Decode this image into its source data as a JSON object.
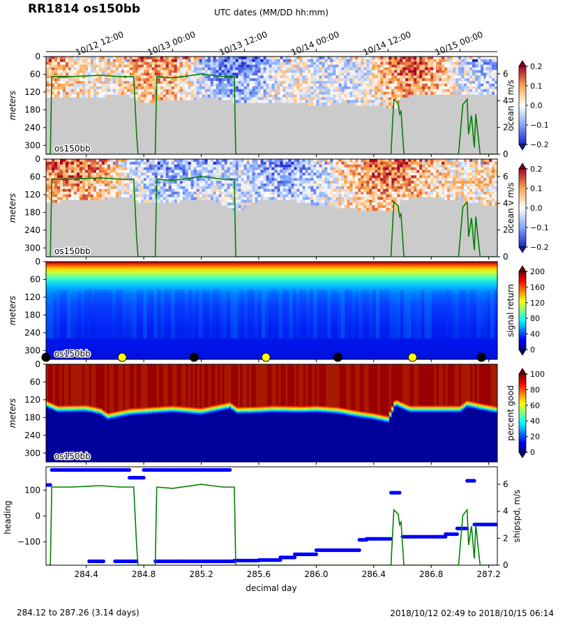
{
  "chart_data": {
    "type": "heatmap",
    "title": "RR1814 os150bb",
    "top_axis": {
      "label": "UTC dates (MM/DD hh:mm)",
      "ticks": [
        {
          "decday": 284.5,
          "label": "10/12 12:00"
        },
        {
          "decday": 285.0,
          "label": "10/13 00:00"
        },
        {
          "decday": 285.5,
          "label": "10/13 12:00"
        },
        {
          "decday": 286.0,
          "label": "10/14 00:00"
        },
        {
          "decday": 286.5,
          "label": "10/14 12:00"
        },
        {
          "decday": 287.0,
          "label": "10/15 00:00"
        }
      ]
    },
    "x_axis": {
      "label": "decimal day",
      "range": [
        284.12,
        287.26
      ],
      "ticks": [
        284.4,
        284.8,
        285.2,
        285.6,
        286.0,
        286.4,
        286.8,
        287.2
      ],
      "tick_labels": [
        "284.4",
        "284.8",
        "285.2",
        "285.6",
        "286.0",
        "286.4",
        "286.8",
        "287.2"
      ]
    },
    "depth_axis": {
      "label": "meters",
      "range": [
        330,
        0
      ],
      "ticks": [
        0,
        60,
        120,
        180,
        240,
        300
      ],
      "tick_labels": [
        "0",
        "60",
        "120",
        "180",
        "240",
        "300"
      ]
    },
    "instrument_label": "os150bb",
    "ship_speed_series": [
      [
        284.12,
        0
      ],
      [
        284.15,
        0
      ],
      [
        284.16,
        5.8
      ],
      [
        284.3,
        5.8
      ],
      [
        284.5,
        5.9
      ],
      [
        284.63,
        5.8
      ],
      [
        284.73,
        5.8
      ],
      [
        284.75,
        1.5
      ],
      [
        284.76,
        0
      ],
      [
        284.88,
        0
      ],
      [
        284.89,
        5.8
      ],
      [
        285.0,
        5.7
      ],
      [
        285.2,
        6.0
      ],
      [
        285.35,
        5.8
      ],
      [
        285.43,
        5.8
      ],
      [
        285.44,
        0
      ],
      [
        286.52,
        0
      ],
      [
        286.54,
        4.1
      ],
      [
        286.57,
        3.8
      ],
      [
        286.58,
        3.0
      ],
      [
        286.59,
        3.2
      ],
      [
        286.61,
        0
      ],
      [
        286.99,
        0
      ],
      [
        287.02,
        3.7
      ],
      [
        287.05,
        4.1
      ],
      [
        287.06,
        1.5
      ],
      [
        287.08,
        2.9
      ],
      [
        287.1,
        0.5
      ],
      [
        287.11,
        3.0
      ],
      [
        287.14,
        0
      ],
      [
        287.26,
        0
      ]
    ],
    "panels": [
      {
        "colorbar_label": "ocean u m/s",
        "colorbar_ticks": [
          "0.2",
          "0.1",
          "0.0",
          "−0.1",
          "−0.2"
        ],
        "colorbar_range": [
          -0.2,
          0.2
        ],
        "colormap": "RdBu_r",
        "right_axis": {
          "ticks": [
            "0",
            "2",
            "4",
            "6"
          ],
          "range": [
            0,
            7.3
          ]
        },
        "bottom_depth_m": [
          [
            284.12,
            135
          ],
          [
            284.4,
            130
          ],
          [
            284.7,
            127
          ],
          [
            284.8,
            150
          ],
          [
            285.0,
            142
          ],
          [
            285.3,
            135
          ],
          [
            285.45,
            150
          ],
          [
            285.6,
            155
          ],
          [
            285.8,
            150
          ],
          [
            286.0,
            160
          ],
          [
            286.2,
            152
          ],
          [
            286.4,
            162
          ],
          [
            286.55,
            168
          ],
          [
            286.6,
            130
          ],
          [
            286.8,
            122
          ],
          [
            287.0,
            128
          ],
          [
            287.26,
            125
          ]
        ]
      },
      {
        "colorbar_label": "ocean v m/s",
        "colorbar_ticks": [
          "0.2",
          "0.1",
          "0.0",
          "−0.1",
          "−0.2"
        ],
        "colorbar_range": [
          -0.2,
          0.2
        ],
        "colormap": "RdBu_r",
        "right_axis": {
          "ticks": [
            "0",
            "2",
            "4",
            "6"
          ],
          "range": [
            0,
            7.3
          ]
        },
        "bottom_depth_m": [
          [
            284.12,
            140
          ],
          [
            284.4,
            132
          ],
          [
            284.7,
            125
          ],
          [
            284.8,
            145
          ],
          [
            285.0,
            138
          ],
          [
            285.3,
            135
          ],
          [
            285.45,
            175
          ],
          [
            285.6,
            135
          ],
          [
            285.8,
            132
          ],
          [
            286.0,
            150
          ],
          [
            286.2,
            160
          ],
          [
            286.4,
            170
          ],
          [
            286.55,
            172
          ],
          [
            286.6,
            130
          ],
          [
            286.8,
            122
          ],
          [
            287.0,
            135
          ],
          [
            287.26,
            155
          ]
        ]
      },
      {
        "colorbar_label": "signal return",
        "colorbar_ticks": [
          "200",
          "160",
          "120",
          "80",
          "40",
          "0"
        ],
        "colorbar_range": [
          0,
          210
        ],
        "colormap": "jet",
        "markers": [
          {
            "decday": 284.12,
            "color": "black"
          },
          {
            "decday": 284.65,
            "color": "yellow"
          },
          {
            "decday": 285.15,
            "color": "black"
          },
          {
            "decday": 285.65,
            "color": "yellow"
          },
          {
            "decday": 286.15,
            "color": "black"
          },
          {
            "decday": 286.67,
            "color": "yellow"
          },
          {
            "decday": 287.15,
            "color": "black"
          }
        ]
      },
      {
        "colorbar_label": "percent good",
        "colorbar_ticks": [
          "100",
          "80",
          "60",
          "40",
          "20",
          "0"
        ],
        "colorbar_range": [
          0,
          100
        ],
        "colormap": "jet",
        "good_depth_m": [
          [
            284.12,
            122
          ],
          [
            284.2,
            140
          ],
          [
            284.4,
            138
          ],
          [
            284.5,
            148
          ],
          [
            284.55,
            165
          ],
          [
            284.7,
            150
          ],
          [
            285.0,
            140
          ],
          [
            285.2,
            148
          ],
          [
            285.4,
            128
          ],
          [
            285.45,
            145
          ],
          [
            285.6,
            143
          ],
          [
            285.7,
            140
          ],
          [
            285.9,
            142
          ],
          [
            286.0,
            140
          ],
          [
            286.15,
            145
          ],
          [
            286.3,
            158
          ],
          [
            286.4,
            165
          ],
          [
            286.5,
            175
          ],
          [
            286.55,
            118
          ],
          [
            286.65,
            140
          ],
          [
            286.85,
            140
          ],
          [
            287.0,
            140
          ],
          [
            287.05,
            122
          ],
          [
            287.15,
            133
          ],
          [
            287.26,
            143
          ]
        ]
      },
      {
        "left_label": "heading",
        "left_color": "#0000ff",
        "left_ticks": [
          100,
          0,
          -100
        ],
        "left_tick_labels": [
          "100",
          "0",
          "−100"
        ],
        "left_range": [
          -190,
          190
        ],
        "right_label": "shipspd, m/s",
        "right_color": "#008000",
        "right_ticks": [
          "0",
          "2",
          "4",
          "6"
        ],
        "right_range": [
          0,
          7.3
        ],
        "heading_segments": [
          [
            284.12,
            284.15,
            120
          ],
          [
            284.16,
            284.5,
            178
          ],
          [
            284.5,
            284.7,
            178
          ],
          [
            284.7,
            284.8,
            148
          ],
          [
            284.8,
            284.88,
            178
          ],
          [
            284.88,
            285.4,
            178
          ],
          [
            284.42,
            284.52,
            -175
          ],
          [
            284.6,
            284.75,
            -175
          ],
          [
            284.88,
            285.43,
            -175
          ],
          [
            285.43,
            285.6,
            -172
          ],
          [
            285.6,
            285.75,
            -170
          ],
          [
            285.75,
            285.85,
            -160
          ],
          [
            285.85,
            286.0,
            -148
          ],
          [
            286.0,
            286.3,
            -132
          ],
          [
            286.3,
            286.35,
            -92
          ],
          [
            286.35,
            286.52,
            -88
          ],
          [
            286.52,
            286.58,
            90
          ],
          [
            286.6,
            286.9,
            -80
          ],
          [
            286.9,
            286.98,
            -70
          ],
          [
            286.98,
            287.05,
            -48
          ],
          [
            287.05,
            287.1,
            136
          ],
          [
            287.1,
            287.26,
            -33
          ]
        ]
      }
    ]
  },
  "footer": {
    "range_text": "284.12 to 287.26 (3.14 days)",
    "date_text": "2018/10/12 02:49 to 2018/10/15 06:14"
  }
}
